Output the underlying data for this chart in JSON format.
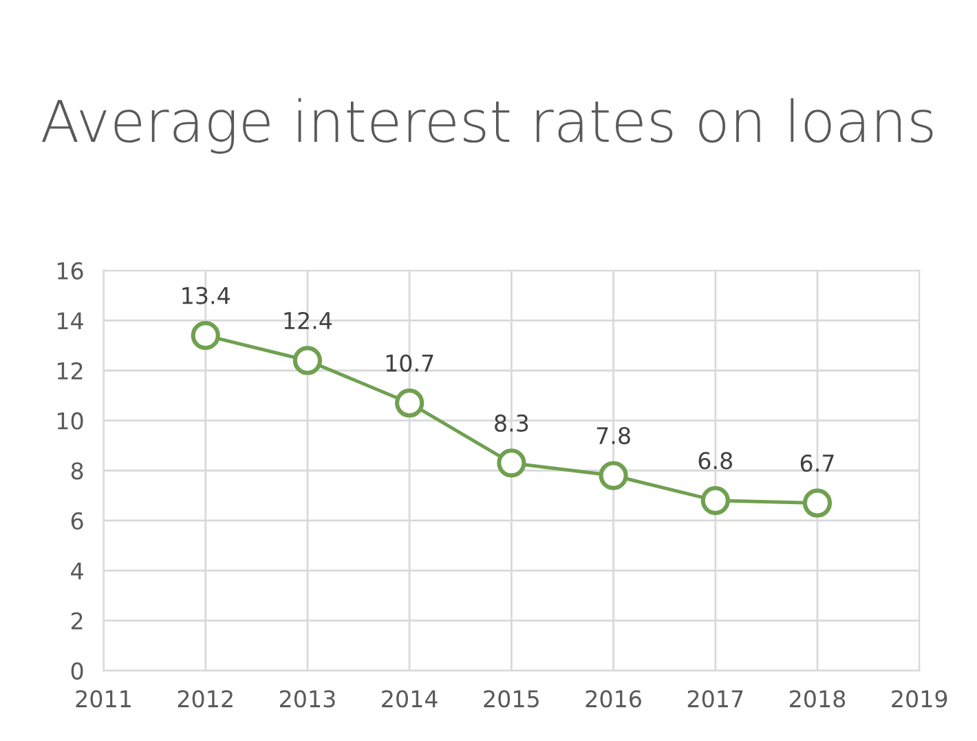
{
  "chart_data": {
    "type": "line",
    "title": "Average interest rates on loans",
    "x": [
      2012,
      2013,
      2014,
      2015,
      2016,
      2017,
      2018
    ],
    "series": [
      {
        "color": "#70a050",
        "values": [
          13.4,
          12.4,
          10.7,
          8.3,
          7.8,
          6.8,
          6.7
        ]
      }
    ],
    "xlim": [
      2011,
      2019
    ],
    "xticks": [
      2011,
      2012,
      2013,
      2014,
      2015,
      2016,
      2017,
      2018,
      2019
    ],
    "ylim": [
      0,
      16
    ],
    "yticks": [
      0,
      2,
      4,
      6,
      8,
      10,
      12,
      14,
      16
    ],
    "grid": true,
    "data_labels": true,
    "marker": "circle",
    "line_style": "solid"
  }
}
